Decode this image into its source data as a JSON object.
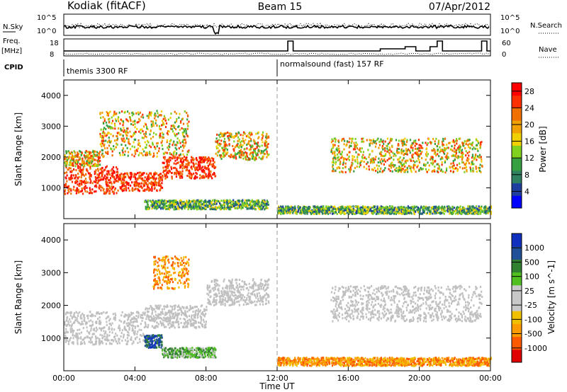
{
  "header": {
    "radar": "Kodiak (fitACF)",
    "beam": "Beam 15",
    "date": "07/Apr/2012"
  },
  "top_panels": {
    "nsky_label": "N.Sky",
    "nsky_ticks": [
      "10^5",
      "10^0"
    ],
    "nsearch_label": "N.Search",
    "nsearch_ticks": [
      "10^5",
      "10^0"
    ],
    "freq_label": "Freq.",
    "freq_unit": "[MHz]",
    "freq_ticks": [
      "18",
      "8"
    ],
    "nave_label": "Nave",
    "nave_ticks": [
      "60",
      "0"
    ],
    "cpid_label": "CPID",
    "cpid_segments": [
      {
        "label": "themis 3300 RF",
        "start_hour": 0,
        "end_hour": 12
      },
      {
        "label": "normalsound (fast) 157 RF",
        "start_hour": 12,
        "end_hour": 24
      }
    ]
  },
  "colors": {
    "power_scale": [
      "#0000ff",
      "#1f3fa0",
      "#2f8060",
      "#36a040",
      "#80d020",
      "#f0d000",
      "#f0a000",
      "#f07000",
      "#ff3000",
      "#ff0000"
    ],
    "velocity_scale": [
      "#e00000",
      "#ff5a00",
      "#ff9a00",
      "#f0c000",
      "#c8c8c8",
      "#c8c8c8",
      "#50c020",
      "#308030",
      "#205098",
      "#1030c0"
    ],
    "ground_scatter": "#c0c0c0"
  },
  "chart_data": [
    {
      "type": "heatmap",
      "name": "Power",
      "xlabel": "Time UT",
      "ylabel": "Slant Range [km]",
      "xlim": [
        0,
        24
      ],
      "ylim": [
        0,
        4500
      ],
      "x_ticks": [
        "00:00",
        "04:00",
        "08:00",
        "12:00",
        "16:00",
        "20:00",
        "00:00"
      ],
      "y_ticks": [
        "1000",
        "2000",
        "3000",
        "4000"
      ],
      "colorbar_label": "Power [dB]",
      "colorbar_ticks": [
        "4",
        "8",
        "12",
        "16",
        "20",
        "24",
        "28"
      ],
      "colorbar_range": [
        0,
        30
      ],
      "bands": [
        {
          "start_hour": 0.0,
          "end_hour": 3.0,
          "range_low": 800,
          "range_high": 1700,
          "level": "high"
        },
        {
          "start_hour": 3.0,
          "end_hour": 5.5,
          "range_low": 900,
          "range_high": 1500,
          "level": "high"
        },
        {
          "start_hour": 5.5,
          "end_hour": 8.5,
          "range_low": 1300,
          "range_high": 2000,
          "level": "high"
        },
        {
          "start_hour": 8.5,
          "end_hour": 11.5,
          "range_low": 1900,
          "range_high": 2800,
          "level": "medium"
        },
        {
          "start_hour": 0.0,
          "end_hour": 2.0,
          "range_low": 1700,
          "range_high": 2200,
          "level": "medium"
        },
        {
          "start_hour": 2.0,
          "end_hour": 7.0,
          "range_low": 2000,
          "range_high": 3500,
          "level": "medium"
        },
        {
          "start_hour": 4.5,
          "end_hour": 11.5,
          "range_low": 300,
          "range_high": 600,
          "level": "low"
        },
        {
          "start_hour": 12.0,
          "end_hour": 24.0,
          "range_low": 150,
          "range_high": 400,
          "level": "low"
        },
        {
          "start_hour": 15.0,
          "end_hour": 23.5,
          "range_low": 1500,
          "range_high": 2600,
          "level": "medium"
        }
      ]
    },
    {
      "type": "heatmap",
      "name": "Velocity",
      "xlabel": "Time UT",
      "ylabel": "Slant Range [km]",
      "xlim": [
        0,
        24
      ],
      "ylim": [
        0,
        4500
      ],
      "x_ticks": [
        "00:00",
        "04:00",
        "08:00",
        "12:00",
        "16:00",
        "20:00",
        "00:00"
      ],
      "y_ticks": [
        "1000",
        "2000",
        "3000",
        "4000"
      ],
      "colorbar_label": "Velocity [m s^-1]",
      "colorbar_ticks": [
        "1000",
        "500",
        "100",
        "25",
        "-25",
        "-100",
        "-500",
        "-1000"
      ],
      "bands": [
        {
          "start_hour": 0.0,
          "end_hour": 4.5,
          "range_low": 800,
          "range_high": 1800,
          "class": "ground"
        },
        {
          "start_hour": 4.5,
          "end_hour": 8.0,
          "range_low": 1300,
          "range_high": 2000,
          "class": "ground"
        },
        {
          "start_hour": 8.0,
          "end_hour": 11.5,
          "range_low": 2000,
          "range_high": 2800,
          "class": "ground"
        },
        {
          "start_hour": 15.0,
          "end_hour": 23.5,
          "range_low": 1500,
          "range_high": 2600,
          "class": "ground"
        },
        {
          "start_hour": 4.5,
          "end_hour": 5.5,
          "range_low": 700,
          "range_high": 1100,
          "class": "positive"
        },
        {
          "start_hour": 5.5,
          "end_hour": 8.5,
          "range_low": 400,
          "range_high": 700,
          "class": "positive_low"
        },
        {
          "start_hour": 5.0,
          "end_hour": 7.0,
          "range_low": 2500,
          "range_high": 3500,
          "class": "negative"
        },
        {
          "start_hour": 12.0,
          "end_hour": 24.0,
          "range_low": 150,
          "range_high": 400,
          "class": "negative"
        }
      ]
    }
  ]
}
